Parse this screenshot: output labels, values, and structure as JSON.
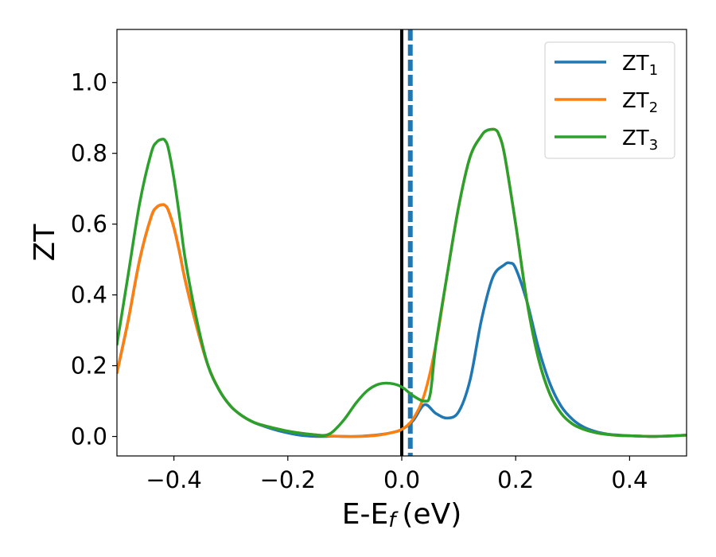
{
  "chart_data": {
    "type": "line",
    "xlabel": "E-E",
    "xlabel_subscript": "f",
    "xlabel_unit": "(eV)",
    "ylabel": "ZT",
    "xlim": [
      -0.5,
      0.5
    ],
    "ylim": [
      -0.055,
      1.15
    ],
    "xticks": [
      -0.4,
      -0.2,
      0.0,
      0.2,
      0.4
    ],
    "xtick_labels": [
      "−0.4",
      "−0.2",
      "0.0",
      "0.2",
      "0.4"
    ],
    "yticks": [
      0.0,
      0.2,
      0.4,
      0.6,
      0.8,
      1.0
    ],
    "ytick_labels": [
      "0.0",
      "0.2",
      "0.4",
      "0.6",
      "0.8",
      "1.0"
    ],
    "grid": false,
    "legend_position": "top-right",
    "reference_lines": [
      {
        "x": 0.0,
        "style": "solid",
        "color": "#000000"
      },
      {
        "x": 0.015,
        "style": "dashed",
        "color": "#1f77b4"
      }
    ],
    "series": [
      {
        "name": "ZT",
        "subscript": "1",
        "color": "#1f77b4",
        "x": [
          -0.5,
          -0.48,
          -0.46,
          -0.44,
          -0.43,
          -0.42,
          -0.415,
          -0.41,
          -0.4,
          -0.39,
          -0.38,
          -0.36,
          -0.34,
          -0.32,
          -0.3,
          -0.28,
          -0.26,
          -0.24,
          -0.22,
          -0.2,
          -0.18,
          -0.16,
          -0.14,
          -0.12,
          -0.1,
          -0.08,
          -0.06,
          -0.04,
          -0.02,
          0.0,
          0.02,
          0.04,
          0.06,
          0.08,
          0.1,
          0.12,
          0.14,
          0.16,
          0.18,
          0.19,
          0.2,
          0.22,
          0.24,
          0.26,
          0.28,
          0.3,
          0.32,
          0.34,
          0.36,
          0.38,
          0.4,
          0.42,
          0.44,
          0.46,
          0.48,
          0.5
        ],
        "y": [
          0.18,
          0.33,
          0.5,
          0.62,
          0.648,
          0.655,
          0.652,
          0.64,
          0.59,
          0.52,
          0.44,
          0.31,
          0.2,
          0.13,
          0.085,
          0.058,
          0.04,
          0.028,
          0.018,
          0.01,
          0.004,
          0.001,
          0.0,
          0.001,
          0.0,
          0.0,
          0.002,
          0.005,
          0.01,
          0.02,
          0.045,
          0.09,
          0.065,
          0.052,
          0.07,
          0.16,
          0.33,
          0.45,
          0.485,
          0.49,
          0.475,
          0.38,
          0.25,
          0.15,
          0.085,
          0.048,
          0.026,
          0.014,
          0.007,
          0.004,
          0.002,
          0.001,
          0.0,
          0.001,
          0.002,
          0.004
        ]
      },
      {
        "name": "ZT",
        "subscript": "2",
        "color": "#ff7f0e",
        "x": [
          -0.5,
          -0.48,
          -0.46,
          -0.44,
          -0.43,
          -0.42,
          -0.415,
          -0.41,
          -0.4,
          -0.39,
          -0.38,
          -0.36,
          -0.34,
          -0.32,
          -0.3,
          -0.28,
          -0.26,
          -0.24,
          -0.22,
          -0.2,
          -0.18,
          -0.16,
          -0.14,
          -0.12,
          -0.1,
          -0.08,
          -0.06,
          -0.04,
          -0.02,
          0.0,
          0.02,
          0.04,
          0.06,
          0.08,
          0.1,
          0.12,
          0.14,
          0.15,
          0.16,
          0.165,
          0.17,
          0.18,
          0.2,
          0.22,
          0.24,
          0.26,
          0.28,
          0.3,
          0.32,
          0.34,
          0.36,
          0.38,
          0.4,
          0.42,
          0.44,
          0.46,
          0.48,
          0.5
        ],
        "y": [
          0.18,
          0.33,
          0.5,
          0.62,
          0.648,
          0.655,
          0.652,
          0.64,
          0.59,
          0.52,
          0.44,
          0.31,
          0.2,
          0.13,
          0.085,
          0.058,
          0.04,
          0.03,
          0.022,
          0.015,
          0.01,
          0.006,
          0.003,
          0.001,
          0.0,
          0.0,
          0.001,
          0.004,
          0.01,
          0.02,
          0.05,
          0.12,
          0.26,
          0.46,
          0.65,
          0.79,
          0.85,
          0.865,
          0.868,
          0.866,
          0.855,
          0.8,
          0.6,
          0.38,
          0.22,
          0.12,
          0.065,
          0.035,
          0.02,
          0.011,
          0.006,
          0.003,
          0.002,
          0.001,
          0.0,
          0.001,
          0.002,
          0.004
        ]
      },
      {
        "name": "ZT",
        "subscript": "3",
        "color": "#2ca02c",
        "x": [
          -0.5,
          -0.48,
          -0.46,
          -0.44,
          -0.43,
          -0.42,
          -0.415,
          -0.41,
          -0.4,
          -0.39,
          -0.38,
          -0.36,
          -0.34,
          -0.32,
          -0.3,
          -0.28,
          -0.26,
          -0.24,
          -0.22,
          -0.2,
          -0.18,
          -0.16,
          -0.14,
          -0.13,
          -0.12,
          -0.1,
          -0.08,
          -0.06,
          -0.04,
          -0.02,
          0.0,
          0.02,
          0.04,
          0.05,
          0.06,
          0.08,
          0.1,
          0.12,
          0.14,
          0.15,
          0.16,
          0.165,
          0.17,
          0.18,
          0.2,
          0.22,
          0.24,
          0.26,
          0.28,
          0.3,
          0.32,
          0.34,
          0.36,
          0.38,
          0.4,
          0.42,
          0.44,
          0.46,
          0.48,
          0.5
        ],
        "y": [
          0.26,
          0.46,
          0.66,
          0.8,
          0.832,
          0.84,
          0.835,
          0.815,
          0.73,
          0.62,
          0.5,
          0.33,
          0.2,
          0.13,
          0.085,
          0.058,
          0.04,
          0.03,
          0.022,
          0.015,
          0.01,
          0.006,
          0.003,
          0.005,
          0.015,
          0.05,
          0.095,
          0.13,
          0.148,
          0.15,
          0.14,
          0.115,
          0.1,
          0.12,
          0.26,
          0.46,
          0.65,
          0.79,
          0.85,
          0.865,
          0.868,
          0.866,
          0.855,
          0.8,
          0.6,
          0.38,
          0.22,
          0.12,
          0.065,
          0.035,
          0.02,
          0.011,
          0.006,
          0.003,
          0.002,
          0.001,
          0.0,
          0.001,
          0.002,
          0.004
        ]
      }
    ]
  }
}
